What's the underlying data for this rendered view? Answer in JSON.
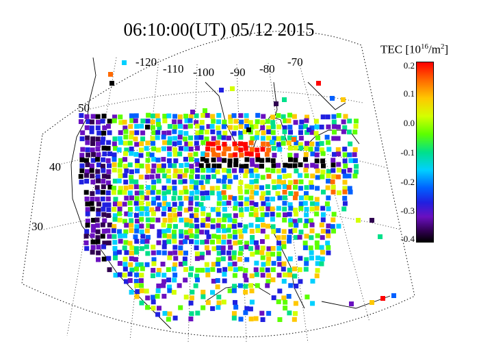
{
  "title": "06:10:00(UT)  05/12 2015",
  "colorbar": {
    "label": "TEC [10",
    "label_exp": "16",
    "label_unit": "/m",
    "label_unit_exp": "2",
    "label_close": "]",
    "ticks": [
      "0.2",
      "0.1",
      "0.0",
      "-0.1",
      "-0.2",
      "-0.3",
      "-0.4"
    ],
    "colors": [
      "#ff0000",
      "#ffc800",
      "#5cff00",
      "#00d0ff",
      "#0060ff",
      "#6a10c0",
      "#000000"
    ]
  },
  "lon_labels": [
    "-120",
    "-110",
    "-100",
    "-90",
    "-80",
    "-70"
  ],
  "lat_labels": [
    "50",
    "40",
    "30"
  ]
}
